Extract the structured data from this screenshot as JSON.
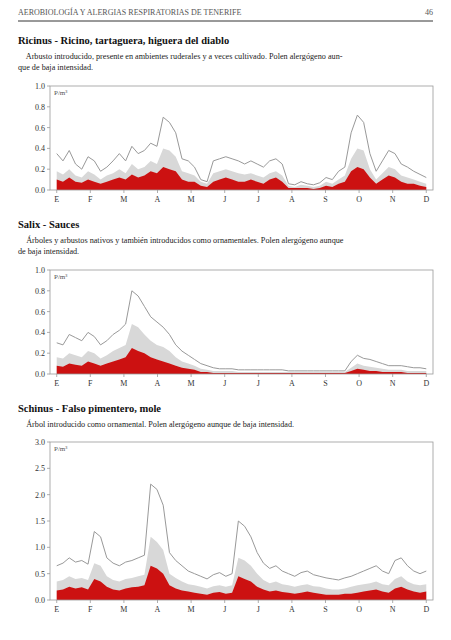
{
  "page_header": "AEROBIOLOGÍA Y ALERGIAS RESPIRATORIAS DE TENERIFE",
  "page_number": "46",
  "chart_data": [
    {
      "type": "area",
      "title": "Ricinus - Ricino, tartaguera, higuera del diablo",
      "annotations": [
        "    Arbusto introducido, presente en ambientes ruderales y a veces cultivado. Polen alergógeno aun-",
        "que de baja intensidad."
      ],
      "y_label": "P/m³",
      "x": [
        0,
        0.186441,
        0.372881,
        0.559322,
        0.745763,
        0.932203,
        1.118644,
        1.305085,
        1.491525,
        1.677966,
        1.864407,
        2.050847,
        2.237288,
        2.423729,
        2.610169,
        2.79661,
        2.983051,
        3.169492,
        3.355932,
        3.542373,
        3.728814,
        3.915254,
        4.101695,
        4.288136,
        4.474576,
        4.661017,
        4.847458,
        5.033898,
        5.220339,
        5.40678,
        5.59322,
        5.779661,
        5.966102,
        6.152542,
        6.338983,
        6.525424,
        6.711864,
        6.898305,
        7.084746,
        7.271186,
        7.457627,
        7.644068,
        7.830508,
        8.016949,
        8.20339,
        8.389831,
        8.576271,
        8.762712,
        8.949153,
        9.135593,
        9.322034,
        9.508475,
        9.694915,
        9.881356,
        10.067797,
        10.254237,
        10.440678,
        10.627119,
        10.813559,
        11
      ],
      "xlim": [
        -0.2,
        11.2
      ],
      "xticks": [
        {
          "value": 0,
          "label": "E"
        },
        {
          "value": 1,
          "label": "F"
        },
        {
          "value": 2,
          "label": "M"
        },
        {
          "value": 3,
          "label": "A"
        },
        {
          "value": 4,
          "label": "M"
        },
        {
          "value": 5,
          "label": "J"
        },
        {
          "value": 6,
          "label": "J"
        },
        {
          "value": 7,
          "label": "A"
        },
        {
          "value": 8,
          "label": "S"
        },
        {
          "value": 9,
          "label": "O"
        },
        {
          "value": 10,
          "label": "N"
        },
        {
          "value": 11,
          "label": "D"
        }
      ],
      "ylim": [
        0.0,
        1.0
      ],
      "yticks": [
        {
          "value": 0,
          "label": "0.0"
        },
        0.2,
        0.4,
        0.6,
        0.8,
        {
          "value": 1,
          "label": "1.0"
        }
      ],
      "grid": false,
      "series": [
        {
          "type": "area",
          "color": "#d8d8d8",
          "values": [
            0.18,
            0.15,
            0.2,
            0.14,
            0.12,
            0.18,
            0.15,
            0.1,
            0.14,
            0.16,
            0.2,
            0.16,
            0.25,
            0.2,
            0.22,
            0.28,
            0.25,
            0.4,
            0.38,
            0.32,
            0.18,
            0.16,
            0.14,
            0.08,
            0.06,
            0.16,
            0.18,
            0.2,
            0.18,
            0.16,
            0.15,
            0.16,
            0.14,
            0.12,
            0.16,
            0.18,
            0.14,
            0.04,
            0.03,
            0.05,
            0.04,
            0.03,
            0.04,
            0.08,
            0.06,
            0.1,
            0.14,
            0.3,
            0.4,
            0.38,
            0.2,
            0.1,
            0.16,
            0.22,
            0.2,
            0.14,
            0.12,
            0.1,
            0.08,
            0.06
          ]
        },
        {
          "type": "area",
          "color": "#cc1111",
          "values": [
            0.1,
            0.08,
            0.12,
            0.08,
            0.07,
            0.1,
            0.08,
            0.06,
            0.08,
            0.1,
            0.12,
            0.1,
            0.15,
            0.12,
            0.14,
            0.18,
            0.16,
            0.22,
            0.2,
            0.18,
            0.1,
            0.08,
            0.08,
            0.04,
            0.03,
            0.08,
            0.1,
            0.12,
            0.1,
            0.08,
            0.08,
            0.1,
            0.08,
            0.06,
            0.1,
            0.12,
            0.08,
            0.02,
            0.02,
            0.02,
            0.02,
            0.01,
            0.02,
            0.04,
            0.03,
            0.06,
            0.08,
            0.18,
            0.22,
            0.2,
            0.12,
            0.06,
            0.1,
            0.14,
            0.12,
            0.08,
            0.06,
            0.06,
            0.04,
            0.03
          ]
        },
        {
          "type": "line",
          "color": "#999999",
          "values": [
            0.35,
            0.28,
            0.38,
            0.25,
            0.2,
            0.32,
            0.28,
            0.18,
            0.22,
            0.28,
            0.35,
            0.28,
            0.42,
            0.35,
            0.38,
            0.45,
            0.42,
            0.7,
            0.65,
            0.55,
            0.3,
            0.28,
            0.22,
            0.1,
            0.08,
            0.28,
            0.3,
            0.32,
            0.3,
            0.28,
            0.25,
            0.28,
            0.25,
            0.22,
            0.28,
            0.3,
            0.25,
            0.06,
            0.05,
            0.08,
            0.06,
            0.05,
            0.07,
            0.12,
            0.1,
            0.18,
            0.22,
            0.55,
            0.72,
            0.65,
            0.35,
            0.18,
            0.28,
            0.38,
            0.35,
            0.25,
            0.22,
            0.18,
            0.15,
            0.12
          ]
        }
      ]
    },
    {
      "type": "area",
      "title": "Salix - Sauces",
      "annotations": [
        "    Árboles y arbustos nativos y también introducidos como ornamentales. Polen alergógeno aunque",
        "de baja intensidad."
      ],
      "y_label": "P/m³",
      "x": [
        0,
        0.186441,
        0.372881,
        0.559322,
        0.745763,
        0.932203,
        1.118644,
        1.305085,
        1.491525,
        1.677966,
        1.864407,
        2.050847,
        2.237288,
        2.423729,
        2.610169,
        2.79661,
        2.983051,
        3.169492,
        3.355932,
        3.542373,
        3.728814,
        3.915254,
        4.101695,
        4.288136,
        4.474576,
        4.661017,
        4.847458,
        5.033898,
        5.220339,
        5.40678,
        5.59322,
        5.779661,
        5.966102,
        6.152542,
        6.338983,
        6.525424,
        6.711864,
        6.898305,
        7.084746,
        7.271186,
        7.457627,
        7.644068,
        7.830508,
        8.016949,
        8.20339,
        8.389831,
        8.576271,
        8.762712,
        8.949153,
        9.135593,
        9.322034,
        9.508475,
        9.694915,
        9.881356,
        10.067797,
        10.254237,
        10.440678,
        10.627119,
        10.813559,
        11
      ],
      "xlim": [
        -0.2,
        11.2
      ],
      "xticks": [
        {
          "value": 0,
          "label": "E"
        },
        {
          "value": 1,
          "label": "F"
        },
        {
          "value": 2,
          "label": "M"
        },
        {
          "value": 3,
          "label": "A"
        },
        {
          "value": 4,
          "label": "M"
        },
        {
          "value": 5,
          "label": "J"
        },
        {
          "value": 6,
          "label": "J"
        },
        {
          "value": 7,
          "label": "A"
        },
        {
          "value": 8,
          "label": "S"
        },
        {
          "value": 9,
          "label": "O"
        },
        {
          "value": 10,
          "label": "N"
        },
        {
          "value": 11,
          "label": "D"
        }
      ],
      "ylim": [
        0.0,
        1.0
      ],
      "yticks": [
        {
          "value": 0,
          "label": "0.0"
        },
        0.2,
        0.4,
        0.6,
        0.8,
        {
          "value": 1,
          "label": "1.0"
        }
      ],
      "grid": false,
      "series": [
        {
          "type": "area",
          "color": "#d8d8d8",
          "values": [
            0.16,
            0.15,
            0.2,
            0.18,
            0.16,
            0.22,
            0.2,
            0.15,
            0.18,
            0.22,
            0.25,
            0.28,
            0.48,
            0.45,
            0.38,
            0.32,
            0.28,
            0.26,
            0.22,
            0.16,
            0.12,
            0.1,
            0.08,
            0.05,
            0.04,
            0.03,
            0.03,
            0.03,
            0.03,
            0.02,
            0.02,
            0.02,
            0.02,
            0.02,
            0.02,
            0.02,
            0.02,
            0.02,
            0.02,
            0.02,
            0.02,
            0.02,
            0.02,
            0.02,
            0.02,
            0.02,
            0.02,
            0.06,
            0.1,
            0.08,
            0.07,
            0.06,
            0.05,
            0.04,
            0.04,
            0.04,
            0.03,
            0.03,
            0.03,
            0.03
          ]
        },
        {
          "type": "area",
          "color": "#cc1111",
          "values": [
            0.08,
            0.07,
            0.1,
            0.09,
            0.08,
            0.12,
            0.1,
            0.08,
            0.1,
            0.12,
            0.14,
            0.16,
            0.25,
            0.22,
            0.2,
            0.16,
            0.14,
            0.12,
            0.1,
            0.08,
            0.06,
            0.05,
            0.04,
            0.02,
            0.02,
            0.01,
            0.01,
            0.01,
            0.01,
            0.01,
            0.01,
            0.01,
            0.01,
            0.01,
            0.01,
            0.01,
            0.01,
            0.01,
            0.01,
            0.01,
            0.01,
            0.01,
            0.01,
            0.01,
            0.01,
            0.01,
            0.01,
            0.03,
            0.05,
            0.04,
            0.03,
            0.03,
            0.02,
            0.02,
            0.02,
            0.02,
            0.01,
            0.01,
            0.01,
            0.01
          ]
        },
        {
          "type": "line",
          "color": "#999999",
          "values": [
            0.3,
            0.28,
            0.38,
            0.35,
            0.32,
            0.4,
            0.36,
            0.28,
            0.32,
            0.38,
            0.42,
            0.48,
            0.8,
            0.75,
            0.65,
            0.55,
            0.5,
            0.45,
            0.38,
            0.28,
            0.22,
            0.18,
            0.14,
            0.1,
            0.08,
            0.06,
            0.05,
            0.05,
            0.05,
            0.04,
            0.04,
            0.04,
            0.04,
            0.04,
            0.04,
            0.04,
            0.04,
            0.03,
            0.03,
            0.03,
            0.03,
            0.03,
            0.03,
            0.03,
            0.03,
            0.03,
            0.03,
            0.12,
            0.18,
            0.15,
            0.14,
            0.12,
            0.1,
            0.08,
            0.08,
            0.08,
            0.07,
            0.06,
            0.06,
            0.05
          ]
        }
      ]
    },
    {
      "type": "area",
      "title": "Schinus - Falso pimentero, mole",
      "annotations": [
        "    Árbol introducido como ornamental. Polen alergógeno aunque de baja intensidad."
      ],
      "y_label": "P/m³",
      "x": [
        0,
        0.186441,
        0.372881,
        0.559322,
        0.745763,
        0.932203,
        1.118644,
        1.305085,
        1.491525,
        1.677966,
        1.864407,
        2.050847,
        2.237288,
        2.423729,
        2.610169,
        2.79661,
        2.983051,
        3.169492,
        3.355932,
        3.542373,
        3.728814,
        3.915254,
        4.101695,
        4.288136,
        4.474576,
        4.661017,
        4.847458,
        5.033898,
        5.220339,
        5.40678,
        5.59322,
        5.779661,
        5.966102,
        6.152542,
        6.338983,
        6.525424,
        6.711864,
        6.898305,
        7.084746,
        7.271186,
        7.457627,
        7.644068,
        7.830508,
        8.016949,
        8.20339,
        8.389831,
        8.576271,
        8.762712,
        8.949153,
        9.135593,
        9.322034,
        9.508475,
        9.694915,
        9.881356,
        10.067797,
        10.254237,
        10.440678,
        10.627119,
        10.813559,
        11
      ],
      "xlim": [
        -0.2,
        11.2
      ],
      "xticks": [
        {
          "value": 0,
          "label": "E"
        },
        {
          "value": 1,
          "label": "F"
        },
        {
          "value": 2,
          "label": "M"
        },
        {
          "value": 3,
          "label": "A"
        },
        {
          "value": 4,
          "label": "M"
        },
        {
          "value": 5,
          "label": "J"
        },
        {
          "value": 6,
          "label": "J"
        },
        {
          "value": 7,
          "label": "A"
        },
        {
          "value": 8,
          "label": "S"
        },
        {
          "value": 9,
          "label": "O"
        },
        {
          "value": 10,
          "label": "N"
        },
        {
          "value": 11,
          "label": "D"
        }
      ],
      "ylim": [
        0.0,
        3.0
      ],
      "yticks": [
        {
          "value": 0,
          "label": "0.0"
        },
        0.5,
        {
          "value": 1,
          "label": "1.0"
        },
        1.5,
        {
          "value": 2,
          "label": "2.0"
        },
        2.5,
        {
          "value": 3,
          "label": "3.0"
        }
      ],
      "grid": false,
      "series": [
        {
          "type": "area",
          "color": "#d8d8d8",
          "values": [
            0.35,
            0.38,
            0.45,
            0.4,
            0.42,
            0.38,
            0.7,
            0.65,
            0.45,
            0.38,
            0.35,
            0.4,
            0.42,
            0.45,
            0.48,
            1.2,
            1.1,
            0.95,
            0.5,
            0.42,
            0.35,
            0.3,
            0.28,
            0.25,
            0.22,
            0.26,
            0.28,
            0.25,
            0.28,
            0.8,
            0.75,
            0.65,
            0.5,
            0.38,
            0.32,
            0.35,
            0.3,
            0.28,
            0.25,
            0.28,
            0.3,
            0.26,
            0.25,
            0.22,
            0.2,
            0.2,
            0.22,
            0.25,
            0.28,
            0.3,
            0.32,
            0.35,
            0.3,
            0.28,
            0.4,
            0.45,
            0.35,
            0.3,
            0.28,
            0.3
          ]
        },
        {
          "type": "area",
          "color": "#cc1111",
          "values": [
            0.18,
            0.2,
            0.25,
            0.22,
            0.24,
            0.2,
            0.4,
            0.35,
            0.25,
            0.2,
            0.18,
            0.22,
            0.24,
            0.25,
            0.28,
            0.65,
            0.6,
            0.5,
            0.28,
            0.22,
            0.18,
            0.16,
            0.14,
            0.12,
            0.1,
            0.14,
            0.15,
            0.12,
            0.14,
            0.45,
            0.4,
            0.35,
            0.25,
            0.2,
            0.16,
            0.18,
            0.15,
            0.14,
            0.12,
            0.14,
            0.16,
            0.14,
            0.12,
            0.1,
            0.1,
            0.1,
            0.12,
            0.12,
            0.14,
            0.16,
            0.18,
            0.2,
            0.16,
            0.14,
            0.22,
            0.25,
            0.2,
            0.16,
            0.14,
            0.16
          ]
        },
        {
          "type": "line",
          "color": "#999999",
          "values": [
            0.65,
            0.7,
            0.8,
            0.72,
            0.75,
            0.68,
            1.3,
            1.2,
            0.8,
            0.7,
            0.65,
            0.72,
            0.75,
            0.8,
            0.85,
            2.2,
            2.1,
            1.8,
            0.9,
            0.75,
            0.65,
            0.55,
            0.5,
            0.45,
            0.4,
            0.48,
            0.52,
            0.45,
            0.5,
            1.5,
            1.4,
            1.2,
            0.9,
            0.7,
            0.6,
            0.65,
            0.55,
            0.5,
            0.45,
            0.52,
            0.55,
            0.48,
            0.45,
            0.42,
            0.4,
            0.38,
            0.42,
            0.45,
            0.5,
            0.55,
            0.6,
            0.65,
            0.55,
            0.5,
            0.75,
            0.8,
            0.65,
            0.55,
            0.5,
            0.55
          ]
        }
      ]
    }
  ]
}
